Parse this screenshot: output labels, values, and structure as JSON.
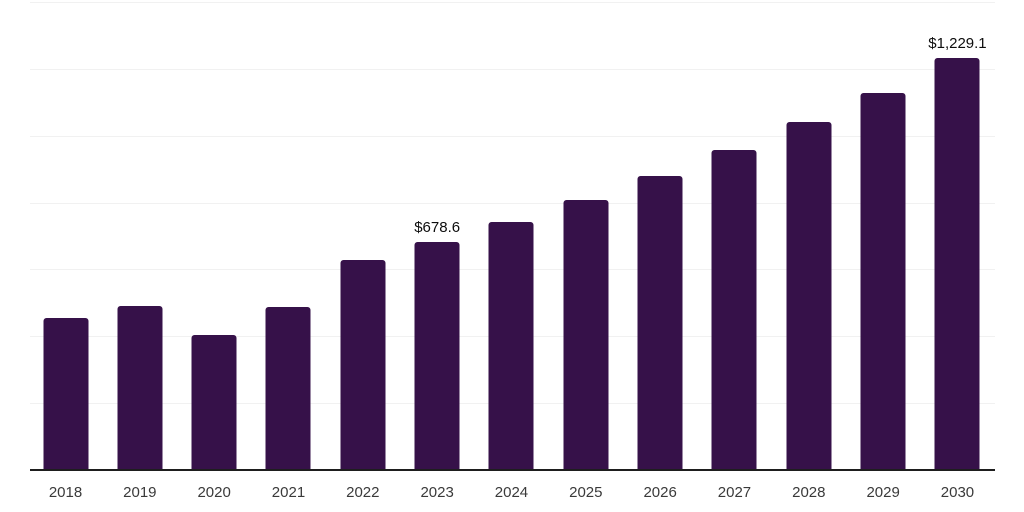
{
  "chart_data": {
    "type": "bar",
    "title": "",
    "xlabel": "",
    "ylabel": "",
    "categories": [
      "2018",
      "2019",
      "2020",
      "2021",
      "2022",
      "2023",
      "2024",
      "2025",
      "2026",
      "2027",
      "2028",
      "2029",
      "2030"
    ],
    "values": [
      451,
      487,
      401,
      485,
      624,
      678.6,
      739,
      804,
      876,
      953,
      1037,
      1126,
      1229.1
    ],
    "data_labels": {
      "2023": "$678.6",
      "2030": "$1,229.1"
    },
    "ylim": [
      0,
      1400
    ],
    "gridline_step": 200,
    "grid": "horizontal-only",
    "legend": "none",
    "y_axis_labels": "hidden",
    "colors": {
      "bar": "#361149",
      "gridline": "#f1f1f1",
      "axis_line": "#1e1e1e",
      "tick_label": "#3a3a3a",
      "data_label": "#0d0d0d",
      "background": "#ffffff"
    }
  }
}
